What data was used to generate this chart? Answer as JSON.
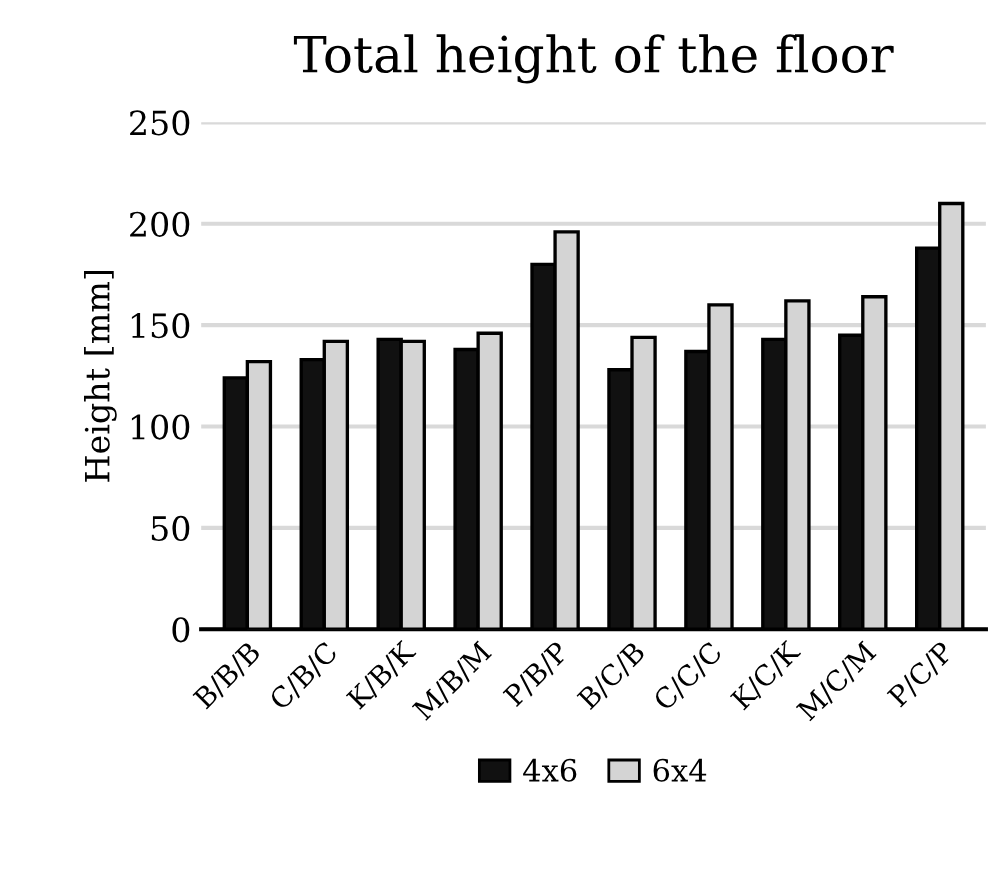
{
  "chart_data": {
    "type": "bar",
    "title": "Total height of the floor",
    "ylabel": "Height [mm]",
    "categories": [
      "B/B/B",
      "C/B/C",
      "K/B/K",
      "M/B/M",
      "P/B/P",
      "B/C/B",
      "C/C/C",
      "K/C/K",
      "M/C/M",
      "P/C/P"
    ],
    "series": [
      {
        "name": "4x6",
        "color": "#111111",
        "values": [
          124,
          133,
          143,
          138,
          180,
          128,
          137,
          143,
          145,
          188
        ]
      },
      {
        "name": "6x4",
        "color": "#d4d4d4",
        "values": [
          132,
          142,
          142,
          146,
          196,
          144,
          160,
          162,
          164,
          210
        ]
      }
    ],
    "ylim": [
      0,
      250
    ],
    "yticks": [
      0,
      50,
      100,
      150,
      200,
      250
    ],
    "grid": "y",
    "legend": "bottom"
  }
}
